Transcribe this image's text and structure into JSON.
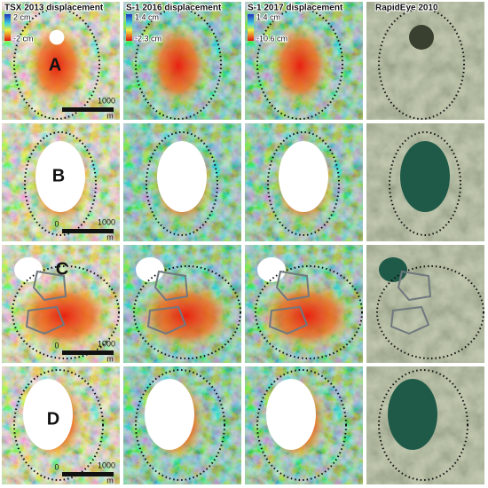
{
  "columns": [
    {
      "title": "TSX 2013 displacement",
      "colorbar": {
        "max": "2 cm",
        "min": "-2 cm"
      }
    },
    {
      "title": "S-1 2016 displacement",
      "colorbar": {
        "max": "1.4 cm",
        "min": "-2.3 cm"
      }
    },
    {
      "title": "S-1 2017 displacement",
      "colorbar": {
        "max": "1.4 cm",
        "min": "-10.6 cm"
      }
    },
    {
      "title": "RapidEye 2010"
    }
  ],
  "rows": [
    {
      "label": "A",
      "scale": [
        "1000",
        "m"
      ]
    },
    {
      "label": "B",
      "scale": [
        "0",
        "1000",
        "m"
      ]
    },
    {
      "label": "C",
      "scale": [
        "0",
        "1000",
        "m"
      ]
    },
    {
      "label": "D",
      "scale": [
        "0",
        "1000",
        "m"
      ]
    }
  ]
}
